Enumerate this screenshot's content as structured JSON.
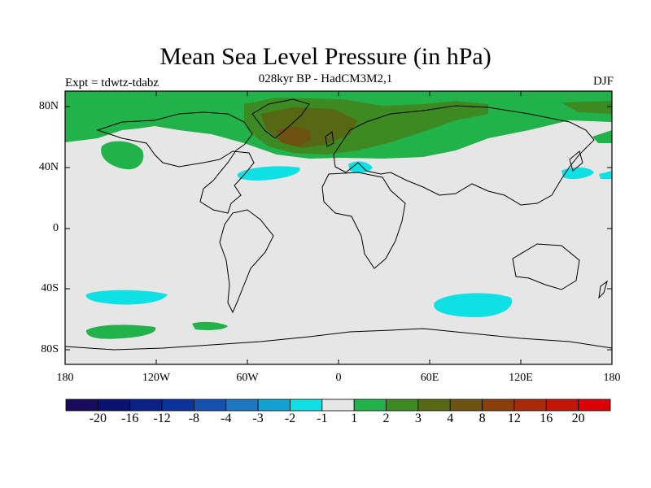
{
  "title": "Mean Sea Level Pressure (in hPa)",
  "subtitle": "028kyr BP - HadCM3M2,1",
  "experiment": "Expt = tdwtz-tdabz",
  "season": "DJF",
  "lat_labels": [
    "80N",
    "40N",
    "0",
    "40S",
    "80S"
  ],
  "lon_labels": [
    "180",
    "120W",
    "60W",
    "0",
    "60E",
    "120E",
    "180"
  ],
  "colorbar": {
    "colors": [
      "#1a0a5c",
      "#0a1270",
      "#0a2288",
      "#0a349c",
      "#1552b0",
      "#1d78c4",
      "#10a2d4",
      "#0ee0e4",
      "#e6e6e6",
      "#22b24a",
      "#3e8a22",
      "#566814",
      "#6e5210",
      "#8a3e0a",
      "#a82a08",
      "#c41608",
      "#dc0004"
    ],
    "labels": [
      "-20",
      "-16",
      "-12",
      "-8",
      "-4",
      "-3",
      "-2",
      "-1",
      "1",
      "2",
      "3",
      "4",
      "8",
      "12",
      "16",
      "20"
    ]
  }
}
